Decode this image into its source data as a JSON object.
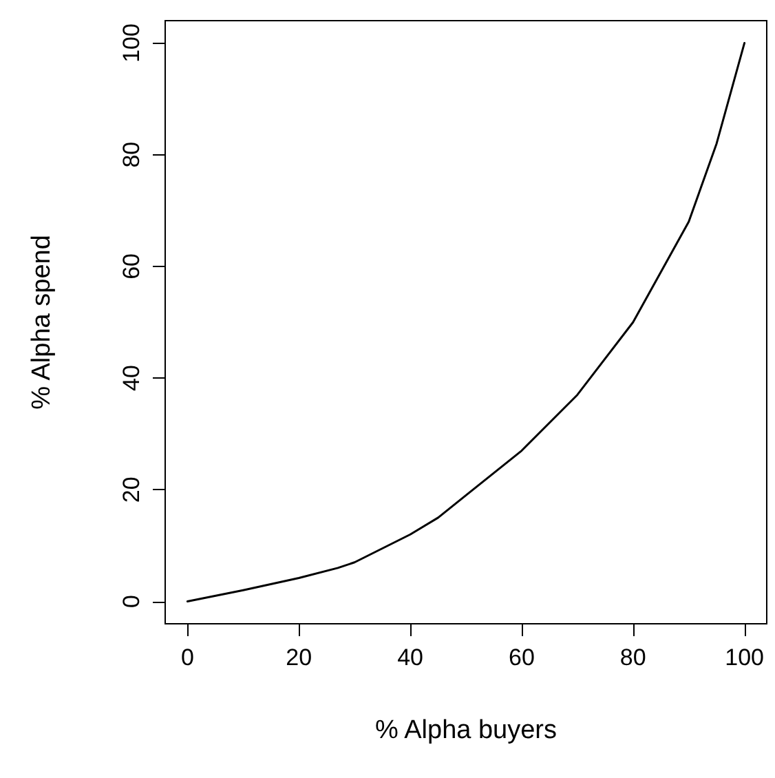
{
  "chart_data": {
    "type": "line",
    "xlabel": "% Alpha buyers",
    "ylabel": "% Alpha spend",
    "x": [
      0,
      10,
      20,
      27,
      30,
      40,
      45,
      50,
      60,
      70,
      80,
      90,
      95,
      100
    ],
    "series": [
      {
        "color": "#000000",
        "values": [
          0,
          2,
          4.2,
          6,
          7,
          12,
          15,
          19,
          27,
          37,
          50,
          68,
          82,
          100
        ]
      }
    ],
    "xlim": [
      -4,
      104
    ],
    "ylim": [
      -4,
      104
    ],
    "xticks": [
      0,
      20,
      40,
      60,
      80,
      100
    ],
    "yticks": [
      0,
      20,
      40,
      60,
      80,
      100
    ],
    "grid": false,
    "marker": "none",
    "line_style": "solid"
  }
}
